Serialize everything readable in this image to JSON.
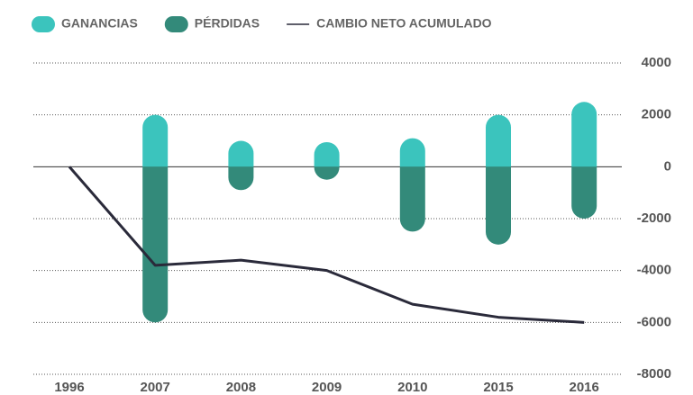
{
  "chart_data": {
    "type": "bar",
    "categories": [
      "1996",
      "2007",
      "2008",
      "2009",
      "2010",
      "2015",
      "2016"
    ],
    "series": [
      {
        "name": "GANANCIAS",
        "color": "#3bc4bd",
        "type": "bar",
        "values": [
          null,
          2000,
          1000,
          950,
          1100,
          2000,
          2500
        ]
      },
      {
        "name": "PÉRDIDAS",
        "color": "#338a7a",
        "type": "bar",
        "values": [
          null,
          -6000,
          -900,
          -500,
          -2500,
          -3000,
          -2000
        ]
      },
      {
        "name": "CAMBIO NETO ACUMULADO",
        "color": "#2a2a3a",
        "type": "line",
        "values": [
          0,
          -3800,
          -3600,
          -4000,
          -5300,
          -5800,
          -6000
        ]
      }
    ],
    "ylim": [
      -8000,
      4000
    ],
    "yticks": [
      4000,
      2000,
      0,
      -2000,
      -4000,
      -6000,
      -8000
    ],
    "grid": true
  }
}
